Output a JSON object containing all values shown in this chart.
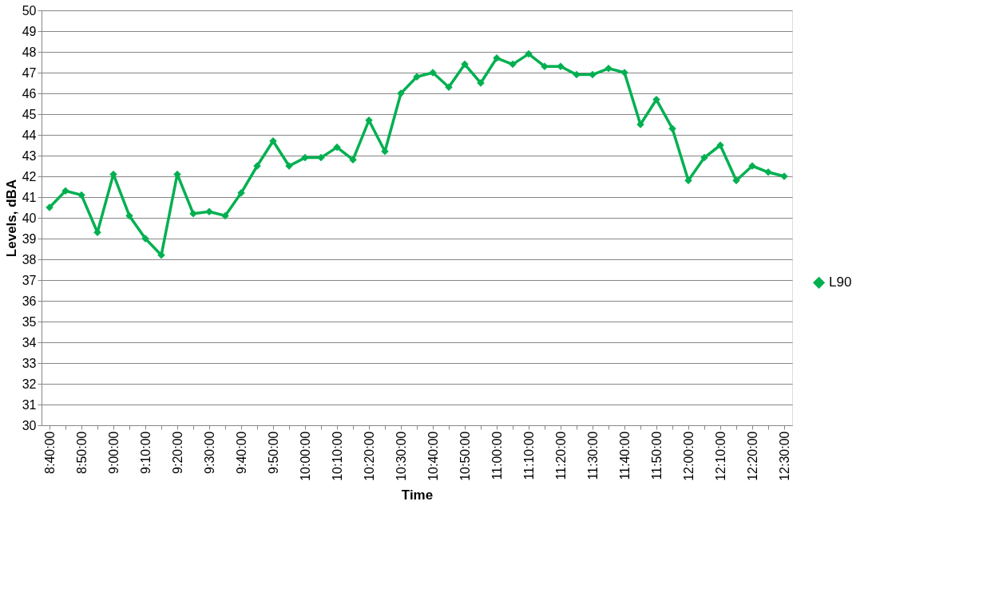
{
  "chart_data": {
    "type": "line",
    "xlabel": "Time",
    "ylabel": "Levels, dBA",
    "categories": [
      "8:40:00",
      null,
      "8:50:00",
      null,
      "9:00:00",
      null,
      "9:10:00",
      null,
      "9:20:00",
      null,
      "9:30:00",
      null,
      "9:40:00",
      null,
      "9:50:00",
      null,
      "10:00:00",
      null,
      "10:10:00",
      null,
      "10:20:00",
      null,
      "10:30:00",
      null,
      "10:40:00",
      null,
      "10:50:00",
      null,
      "11:00:00",
      null,
      "11:10:00",
      null,
      "11:20:00",
      null,
      "11:30:00",
      null,
      "11:40:00",
      null,
      "11:50:00",
      null,
      "12:00:00",
      null,
      "12:10:00",
      null,
      "12:20:00",
      null,
      "12:30:00"
    ],
    "series": [
      {
        "name": "L90",
        "color": "#00b050",
        "values": [
          40.5,
          41.3,
          41.1,
          39.3,
          42.1,
          40.1,
          39.0,
          38.2,
          42.1,
          40.2,
          40.3,
          40.1,
          41.2,
          42.5,
          43.7,
          42.5,
          42.9,
          42.9,
          43.4,
          42.8,
          44.7,
          43.2,
          46.0,
          46.8,
          47.0,
          46.3,
          47.4,
          46.5,
          47.7,
          47.4,
          47.9,
          47.3,
          47.3,
          46.9,
          46.9,
          47.2,
          47.0,
          44.5,
          45.7,
          44.3,
          41.8,
          42.9,
          43.5,
          41.8,
          42.5,
          42.2,
          42.0
        ]
      }
    ],
    "ylim": [
      30,
      50
    ],
    "yticks": [
      30,
      31,
      32,
      33,
      34,
      35,
      36,
      37,
      38,
      39,
      40,
      41,
      42,
      43,
      44,
      45,
      46,
      47,
      48,
      49,
      50
    ],
    "grid": "y",
    "legend": "right",
    "marker": "diamond",
    "line_style": "solid"
  }
}
